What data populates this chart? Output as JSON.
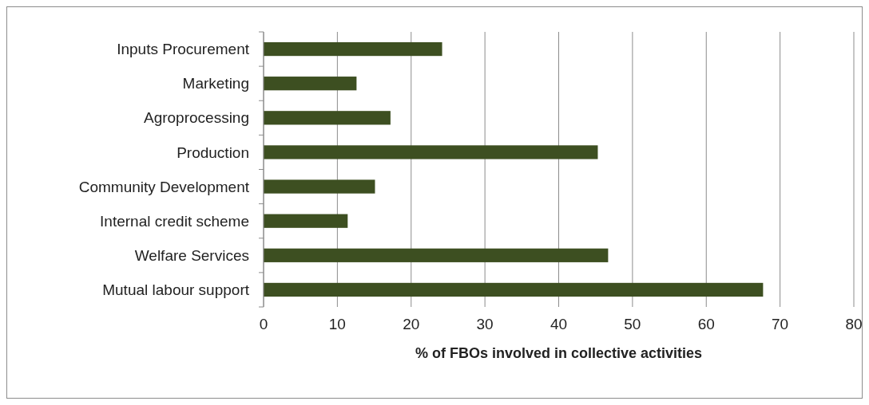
{
  "chart_data": {
    "type": "bar",
    "orientation": "horizontal",
    "xlabel": "% of FBOs involved in collective activities",
    "categories": [
      "Inputs Procurement",
      "Marketing",
      "Agroprocessing",
      "Production",
      "Community Development",
      "Internal credit scheme",
      "Welfare Services",
      "Mutual labour support"
    ],
    "values": [
      24.2,
      12.6,
      17.2,
      45.3,
      15.1,
      11.4,
      46.7,
      67.7
    ],
    "color": "#3d4f21",
    "xlim": [
      0,
      80
    ],
    "xticks": [
      0,
      10,
      20,
      30,
      40,
      50,
      60,
      70,
      80
    ],
    "grid": "x"
  }
}
